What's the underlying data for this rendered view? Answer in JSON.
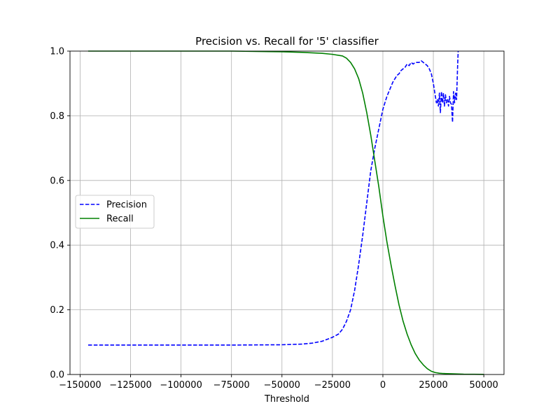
{
  "chart_data": {
    "type": "line",
    "title": "Precision vs. Recall for '5' classifier",
    "xlabel": "Threshold",
    "ylabel": "",
    "xlim": [
      -155000,
      60000
    ],
    "ylim": [
      0,
      1.0
    ],
    "grid": true,
    "legend_position": "center-left",
    "x_ticks": [
      -150000,
      -125000,
      -100000,
      -75000,
      -50000,
      -25000,
      0,
      25000,
      50000
    ],
    "x_tick_labels": [
      "−150000",
      "−125000",
      "−100000",
      "−75000",
      "−50000",
      "−25000",
      "0",
      "25000",
      "50000"
    ],
    "y_ticks": [
      0.0,
      0.2,
      0.4,
      0.6,
      0.8,
      1.0
    ],
    "y_tick_labels": [
      "0.0",
      "0.2",
      "0.4",
      "0.6",
      "0.8",
      "1.0"
    ],
    "series": [
      {
        "name": "Precision",
        "color": "#0000ff",
        "style": "dashed",
        "x": [
          -146000,
          -120000,
          -100000,
          -75000,
          -50000,
          -40000,
          -35000,
          -30000,
          -25000,
          -22000,
          -20000,
          -18000,
          -16000,
          -14000,
          -12000,
          -10000,
          -8000,
          -6000,
          -4000,
          -2000,
          -1000,
          0,
          1000,
          2000,
          3000,
          4000,
          5000,
          6000,
          7000,
          8000,
          9000,
          10000,
          11000,
          12000,
          13000,
          14000,
          15000,
          16000,
          17000,
          18000,
          19000,
          20000,
          21000,
          22000,
          23000,
          24000,
          25000,
          26000,
          26500,
          27000,
          27500,
          28000,
          28500,
          29000,
          29500,
          30000,
          30500,
          31000,
          31500,
          32000,
          32500,
          33000,
          33500,
          34000,
          34500,
          35000,
          35500,
          36000,
          36500,
          37000,
          37300
        ],
        "y": [
          0.091,
          0.091,
          0.091,
          0.091,
          0.092,
          0.094,
          0.097,
          0.103,
          0.115,
          0.125,
          0.14,
          0.165,
          0.2,
          0.26,
          0.34,
          0.43,
          0.53,
          0.63,
          0.7,
          0.76,
          0.79,
          0.82,
          0.84,
          0.86,
          0.875,
          0.89,
          0.905,
          0.915,
          0.925,
          0.93,
          0.94,
          0.945,
          0.95,
          0.96,
          0.955,
          0.965,
          0.96,
          0.965,
          0.965,
          0.965,
          0.97,
          0.965,
          0.96,
          0.955,
          0.945,
          0.93,
          0.9,
          0.86,
          0.84,
          0.85,
          0.83,
          0.87,
          0.81,
          0.875,
          0.84,
          0.87,
          0.83,
          0.865,
          0.84,
          0.85,
          0.83,
          0.86,
          0.84,
          0.835,
          0.78,
          0.875,
          0.84,
          0.87,
          0.85,
          0.95,
          1.0
        ]
      },
      {
        "name": "Recall",
        "color": "#008000",
        "style": "solid",
        "x": [
          -146000,
          -100000,
          -75000,
          -50000,
          -40000,
          -30000,
          -25000,
          -20000,
          -18000,
          -16000,
          -14000,
          -12000,
          -10000,
          -8000,
          -6000,
          -4000,
          -2000,
          0,
          2000,
          4000,
          6000,
          8000,
          10000,
          12000,
          14000,
          16000,
          18000,
          20000,
          22000,
          24000,
          26000,
          28000,
          30000,
          35000,
          40000,
          50000
        ],
        "y": [
          1.0,
          1.0,
          1.0,
          0.998,
          0.996,
          0.993,
          0.99,
          0.985,
          0.978,
          0.965,
          0.945,
          0.915,
          0.87,
          0.81,
          0.74,
          0.66,
          0.58,
          0.49,
          0.41,
          0.34,
          0.275,
          0.215,
          0.165,
          0.125,
          0.092,
          0.065,
          0.045,
          0.03,
          0.018,
          0.01,
          0.006,
          0.004,
          0.003,
          0.002,
          0.001,
          0.0005
        ]
      }
    ]
  }
}
